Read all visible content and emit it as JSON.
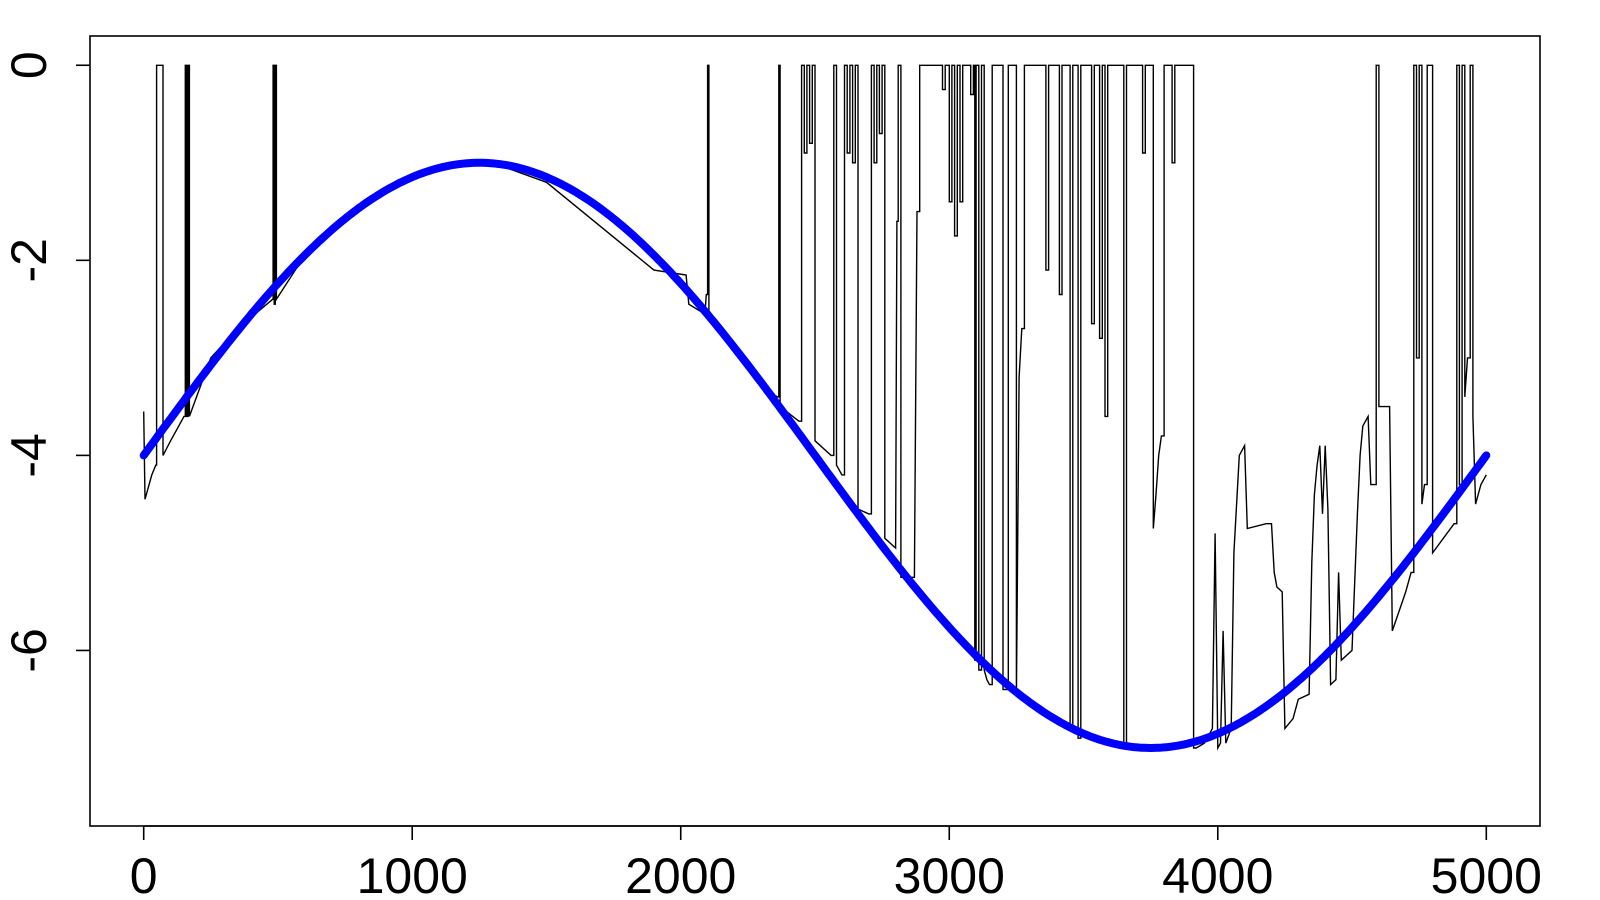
{
  "chart_data": {
    "type": "line",
    "title": "",
    "xlabel": "",
    "ylabel": "",
    "xlim": [
      -200,
      5200
    ],
    "ylim": [
      -7.8,
      0.3
    ],
    "xticks": [
      0,
      1000,
      2000,
      3000,
      4000,
      5000
    ],
    "xtick_labels": [
      "0",
      "1000",
      "2000",
      "3000",
      "4000",
      "5000"
    ],
    "yticks": [
      0,
      -2,
      -4,
      -6
    ],
    "ytick_labels": [
      "0",
      "-2",
      "-4",
      "-6"
    ],
    "grid": false,
    "colors": {
      "smooth_curve": "#0000ff",
      "trace": "#000000"
    },
    "series": [
      {
        "style": "thin black step line",
        "points": [
          [
            0,
            -3.55
          ],
          [
            5,
            -4.45
          ],
          [
            30,
            -4.2
          ],
          [
            45,
            -4.1
          ],
          [
            48,
            0
          ],
          [
            70,
            0
          ],
          [
            72,
            -4.0
          ],
          [
            100,
            -3.85
          ],
          [
            150,
            -3.6
          ],
          [
            155,
            0
          ],
          [
            160,
            -3.6
          ],
          [
            165,
            0
          ],
          [
            170,
            -3.6
          ],
          [
            250,
            -3.0
          ],
          [
            350,
            -2.7
          ],
          [
            480,
            -2.4
          ],
          [
            482,
            0
          ],
          [
            486,
            -2.45
          ],
          [
            490,
            0
          ],
          [
            494,
            -2.4
          ],
          [
            600,
            -1.95
          ],
          [
            800,
            -1.45
          ],
          [
            1000,
            -1.15
          ],
          [
            1200,
            -1.02
          ],
          [
            1300,
            -1.0
          ],
          [
            1500,
            -1.2
          ],
          [
            1700,
            -1.65
          ],
          [
            1900,
            -2.1
          ],
          [
            2020,
            -2.15
          ],
          [
            2030,
            -2.45
          ],
          [
            2090,
            -2.55
          ],
          [
            2095,
            -2.35
          ],
          [
            2100,
            0
          ],
          [
            2105,
            -2.6
          ],
          [
            2200,
            -2.95
          ],
          [
            2300,
            -3.3
          ],
          [
            2360,
            -3.4
          ],
          [
            2365,
            0
          ],
          [
            2370,
            -3.5
          ],
          [
            2440,
            -3.65
          ],
          [
            2450,
            0
          ],
          [
            2460,
            -0.9
          ],
          [
            2470,
            0
          ],
          [
            2480,
            -0.8
          ],
          [
            2490,
            0
          ],
          [
            2500,
            -3.85
          ],
          [
            2560,
            -4.0
          ],
          [
            2570,
            0
          ],
          [
            2580,
            -4.1
          ],
          [
            2600,
            -4.2
          ],
          [
            2610,
            0
          ],
          [
            2620,
            -0.9
          ],
          [
            2630,
            0
          ],
          [
            2640,
            -1.0
          ],
          [
            2650,
            0
          ],
          [
            2660,
            -4.55
          ],
          [
            2700,
            -4.6
          ],
          [
            2710,
            0
          ],
          [
            2720,
            -1.0
          ],
          [
            2730,
            0
          ],
          [
            2740,
            -0.7
          ],
          [
            2750,
            0
          ],
          [
            2760,
            -4.85
          ],
          [
            2800,
            -4.95
          ],
          [
            2805,
            -1.6
          ],
          [
            2810,
            0
          ],
          [
            2820,
            -5.25
          ],
          [
            2870,
            -5.25
          ],
          [
            2880,
            -1.5
          ],
          [
            2890,
            0
          ],
          [
            2970,
            0
          ],
          [
            2975,
            -0.25
          ],
          [
            2985,
            0
          ],
          [
            3000,
            -1.4
          ],
          [
            3010,
            0
          ],
          [
            3020,
            -1.75
          ],
          [
            3030,
            0
          ],
          [
            3040,
            -1.4
          ],
          [
            3050,
            0
          ],
          [
            3080,
            -0.3
          ],
          [
            3090,
            0
          ],
          [
            3095,
            -6.1
          ],
          [
            3100,
            0
          ],
          [
            3110,
            -6.2
          ],
          [
            3120,
            0
          ],
          [
            3130,
            -6.2
          ],
          [
            3140,
            -6.3
          ],
          [
            3150,
            -6.35
          ],
          [
            3160,
            0
          ],
          [
            3200,
            -6.4
          ],
          [
            3220,
            0
          ],
          [
            3250,
            -6.45
          ],
          [
            3260,
            -3.2
          ],
          [
            3270,
            -2.7
          ],
          [
            3280,
            0
          ],
          [
            3350,
            0
          ],
          [
            3360,
            -2.1
          ],
          [
            3370,
            0
          ],
          [
            3400,
            0
          ],
          [
            3410,
            -2.35
          ],
          [
            3420,
            0
          ],
          [
            3450,
            -6.8
          ],
          [
            3460,
            0
          ],
          [
            3480,
            -6.9
          ],
          [
            3490,
            0
          ],
          [
            3520,
            0
          ],
          [
            3530,
            -2.65
          ],
          [
            3540,
            0
          ],
          [
            3560,
            -2.8
          ],
          [
            3570,
            0
          ],
          [
            3580,
            -3.6
          ],
          [
            3590,
            0
          ],
          [
            3640,
            0
          ],
          [
            3650,
            -7.0
          ],
          [
            3660,
            0
          ],
          [
            3700,
            0
          ],
          [
            3720,
            -0.9
          ],
          [
            3730,
            0
          ],
          [
            3760,
            -4.75
          ],
          [
            3770,
            -4.4
          ],
          [
            3780,
            -4.0
          ],
          [
            3790,
            -3.8
          ],
          [
            3800,
            0
          ],
          [
            3820,
            0
          ],
          [
            3830,
            -1.0
          ],
          [
            3840,
            0
          ],
          [
            3900,
            0
          ],
          [
            3910,
            -7.0
          ],
          [
            3920,
            -7.0
          ],
          [
            3950,
            -6.95
          ],
          [
            3980,
            -6.8
          ],
          [
            3990,
            -4.8
          ],
          [
            4000,
            -7.0
          ],
          [
            4010,
            -6.95
          ],
          [
            4020,
            -5.8
          ],
          [
            4030,
            -6.95
          ],
          [
            4050,
            -6.8
          ],
          [
            4060,
            -5.0
          ],
          [
            4080,
            -4.0
          ],
          [
            4100,
            -3.9
          ],
          [
            4110,
            -4.75
          ],
          [
            4180,
            -4.7
          ],
          [
            4200,
            -4.7
          ],
          [
            4210,
            -5.2
          ],
          [
            4220,
            -5.35
          ],
          [
            4240,
            -5.4
          ],
          [
            4250,
            -6.8
          ],
          [
            4280,
            -6.7
          ],
          [
            4300,
            -6.5
          ],
          [
            4340,
            -6.45
          ],
          [
            4350,
            -5.1
          ],
          [
            4360,
            -4.4
          ],
          [
            4370,
            -4.1
          ],
          [
            4380,
            -3.9
          ],
          [
            4390,
            -4.6
          ],
          [
            4400,
            -3.9
          ],
          [
            4410,
            -4.55
          ],
          [
            4420,
            -6.35
          ],
          [
            4440,
            -6.3
          ],
          [
            4450,
            -5.2
          ],
          [
            4460,
            -6.1
          ],
          [
            4500,
            -6.0
          ],
          [
            4520,
            -4.6
          ],
          [
            4530,
            -4.0
          ],
          [
            4540,
            -3.7
          ],
          [
            4560,
            -3.6
          ],
          [
            4570,
            -4.3
          ],
          [
            4580,
            -4.3
          ],
          [
            4590,
            0
          ],
          [
            4600,
            -3.5
          ],
          [
            4640,
            -3.5
          ],
          [
            4650,
            -5.8
          ],
          [
            4700,
            -5.4
          ],
          [
            4720,
            -5.2
          ],
          [
            4730,
            0
          ],
          [
            4740,
            -3.0
          ],
          [
            4750,
            0
          ],
          [
            4760,
            -4.5
          ],
          [
            4770,
            -4.3
          ],
          [
            4780,
            0
          ],
          [
            4800,
            -5.0
          ],
          [
            4880,
            -4.7
          ],
          [
            4890,
            0
          ],
          [
            4900,
            -4.3
          ],
          [
            4910,
            0
          ],
          [
            4920,
            -3.4
          ],
          [
            4930,
            -3.0
          ],
          [
            4940,
            0
          ],
          [
            4950,
            -3.6
          ],
          [
            4960,
            -4.5
          ],
          [
            4980,
            -4.3
          ],
          [
            5000,
            -4.2
          ]
        ]
      },
      {
        "style": "thick blue smooth curve",
        "function": "-4 + 3*sin(2*pi*x/5000)",
        "x_range": [
          0,
          5000
        ]
      }
    ]
  }
}
